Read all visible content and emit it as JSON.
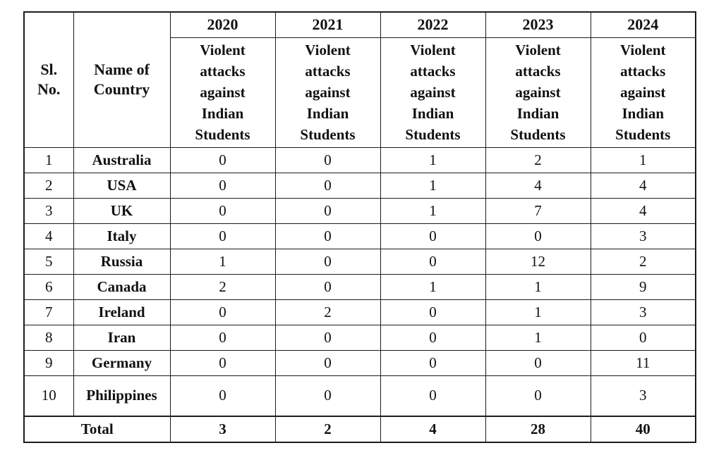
{
  "colors": {
    "background": "#ffffff",
    "border": "#1c1c1c",
    "text": "#111111"
  },
  "table": {
    "header": {
      "sl_no": "Sl.\nNo.",
      "name_of_country": "Name of\nCountry",
      "years": [
        "2020",
        "2021",
        "2022",
        "2023",
        "2024"
      ],
      "year_sub_label": "Violent\nattacks\nagainst\nIndian\nStudents"
    },
    "rows": [
      {
        "sl": "1",
        "country": "Australia",
        "values": [
          "0",
          "0",
          "1",
          "2",
          "1"
        ]
      },
      {
        "sl": "2",
        "country": "USA",
        "values": [
          "0",
          "0",
          "1",
          "4",
          "4"
        ]
      },
      {
        "sl": "3",
        "country": "UK",
        "values": [
          "0",
          "0",
          "1",
          "7",
          "4"
        ]
      },
      {
        "sl": "4",
        "country": "Italy",
        "values": [
          "0",
          "0",
          "0",
          "0",
          "3"
        ]
      },
      {
        "sl": "5",
        "country": "Russia",
        "values": [
          "1",
          "0",
          "0",
          "12",
          "2"
        ]
      },
      {
        "sl": "6",
        "country": "Canada",
        "values": [
          "2",
          "0",
          "1",
          "1",
          "9"
        ]
      },
      {
        "sl": "7",
        "country": "Ireland",
        "values": [
          "0",
          "2",
          "0",
          "1",
          "3"
        ]
      },
      {
        "sl": "8",
        "country": "Iran",
        "values": [
          "0",
          "0",
          "0",
          "1",
          "0"
        ]
      },
      {
        "sl": "9",
        "country": "Germany",
        "values": [
          "0",
          "0",
          "0",
          "0",
          "11"
        ]
      },
      {
        "sl": "10",
        "country": "Philippines",
        "values": [
          "0",
          "0",
          "0",
          "0",
          "3"
        ]
      }
    ],
    "total": {
      "label": "Total",
      "values": [
        "3",
        "2",
        "4",
        "28",
        "40"
      ]
    }
  }
}
